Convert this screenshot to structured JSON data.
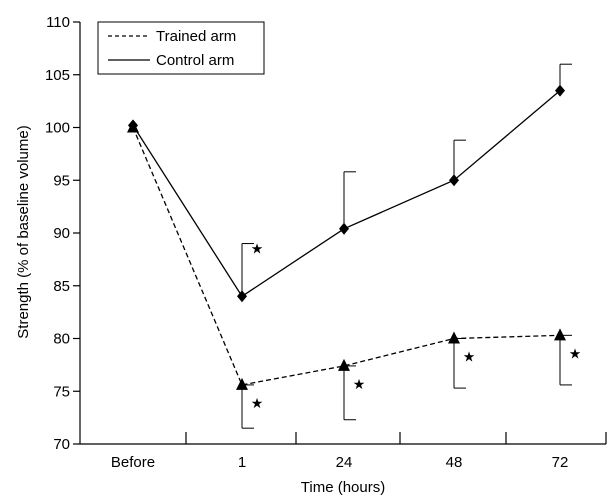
{
  "chart_data": {
    "type": "line",
    "title": "",
    "xlabel": "Time (hours)",
    "ylabel": "Strength (% of baseline volume)",
    "categories": [
      "Before",
      "1",
      "24",
      "48",
      "72"
    ],
    "ylim": [
      70,
      110
    ],
    "yticks": [
      70,
      75,
      80,
      85,
      90,
      95,
      100,
      105,
      110
    ],
    "grid": false,
    "legend_position": "top-left",
    "series": [
      {
        "name": "Trained arm",
        "style": "dashed",
        "marker": "triangle",
        "values": [
          100,
          75.6,
          77.4,
          80.0,
          80.3
        ],
        "error_bars": [
          null,
          [
            71.5,
            75.6
          ],
          [
            72.3,
            77.4
          ],
          [
            75.3,
            80.0
          ],
          [
            75.6,
            80.3
          ]
        ],
        "significance_marker": [
          false,
          true,
          true,
          true,
          true
        ]
      },
      {
        "name": "Control arm",
        "style": "solid",
        "marker": "diamond",
        "values": [
          100.2,
          84.0,
          90.4,
          95.0,
          103.5
        ],
        "error_bars": [
          null,
          [
            84.0,
            89.0
          ],
          [
            90.4,
            95.8
          ],
          [
            95.0,
            98.8
          ],
          [
            103.5,
            106.0
          ]
        ],
        "significance_marker": [
          false,
          false,
          false,
          false,
          false
        ]
      }
    ],
    "annotations": {
      "significance_symbol": "★"
    }
  }
}
